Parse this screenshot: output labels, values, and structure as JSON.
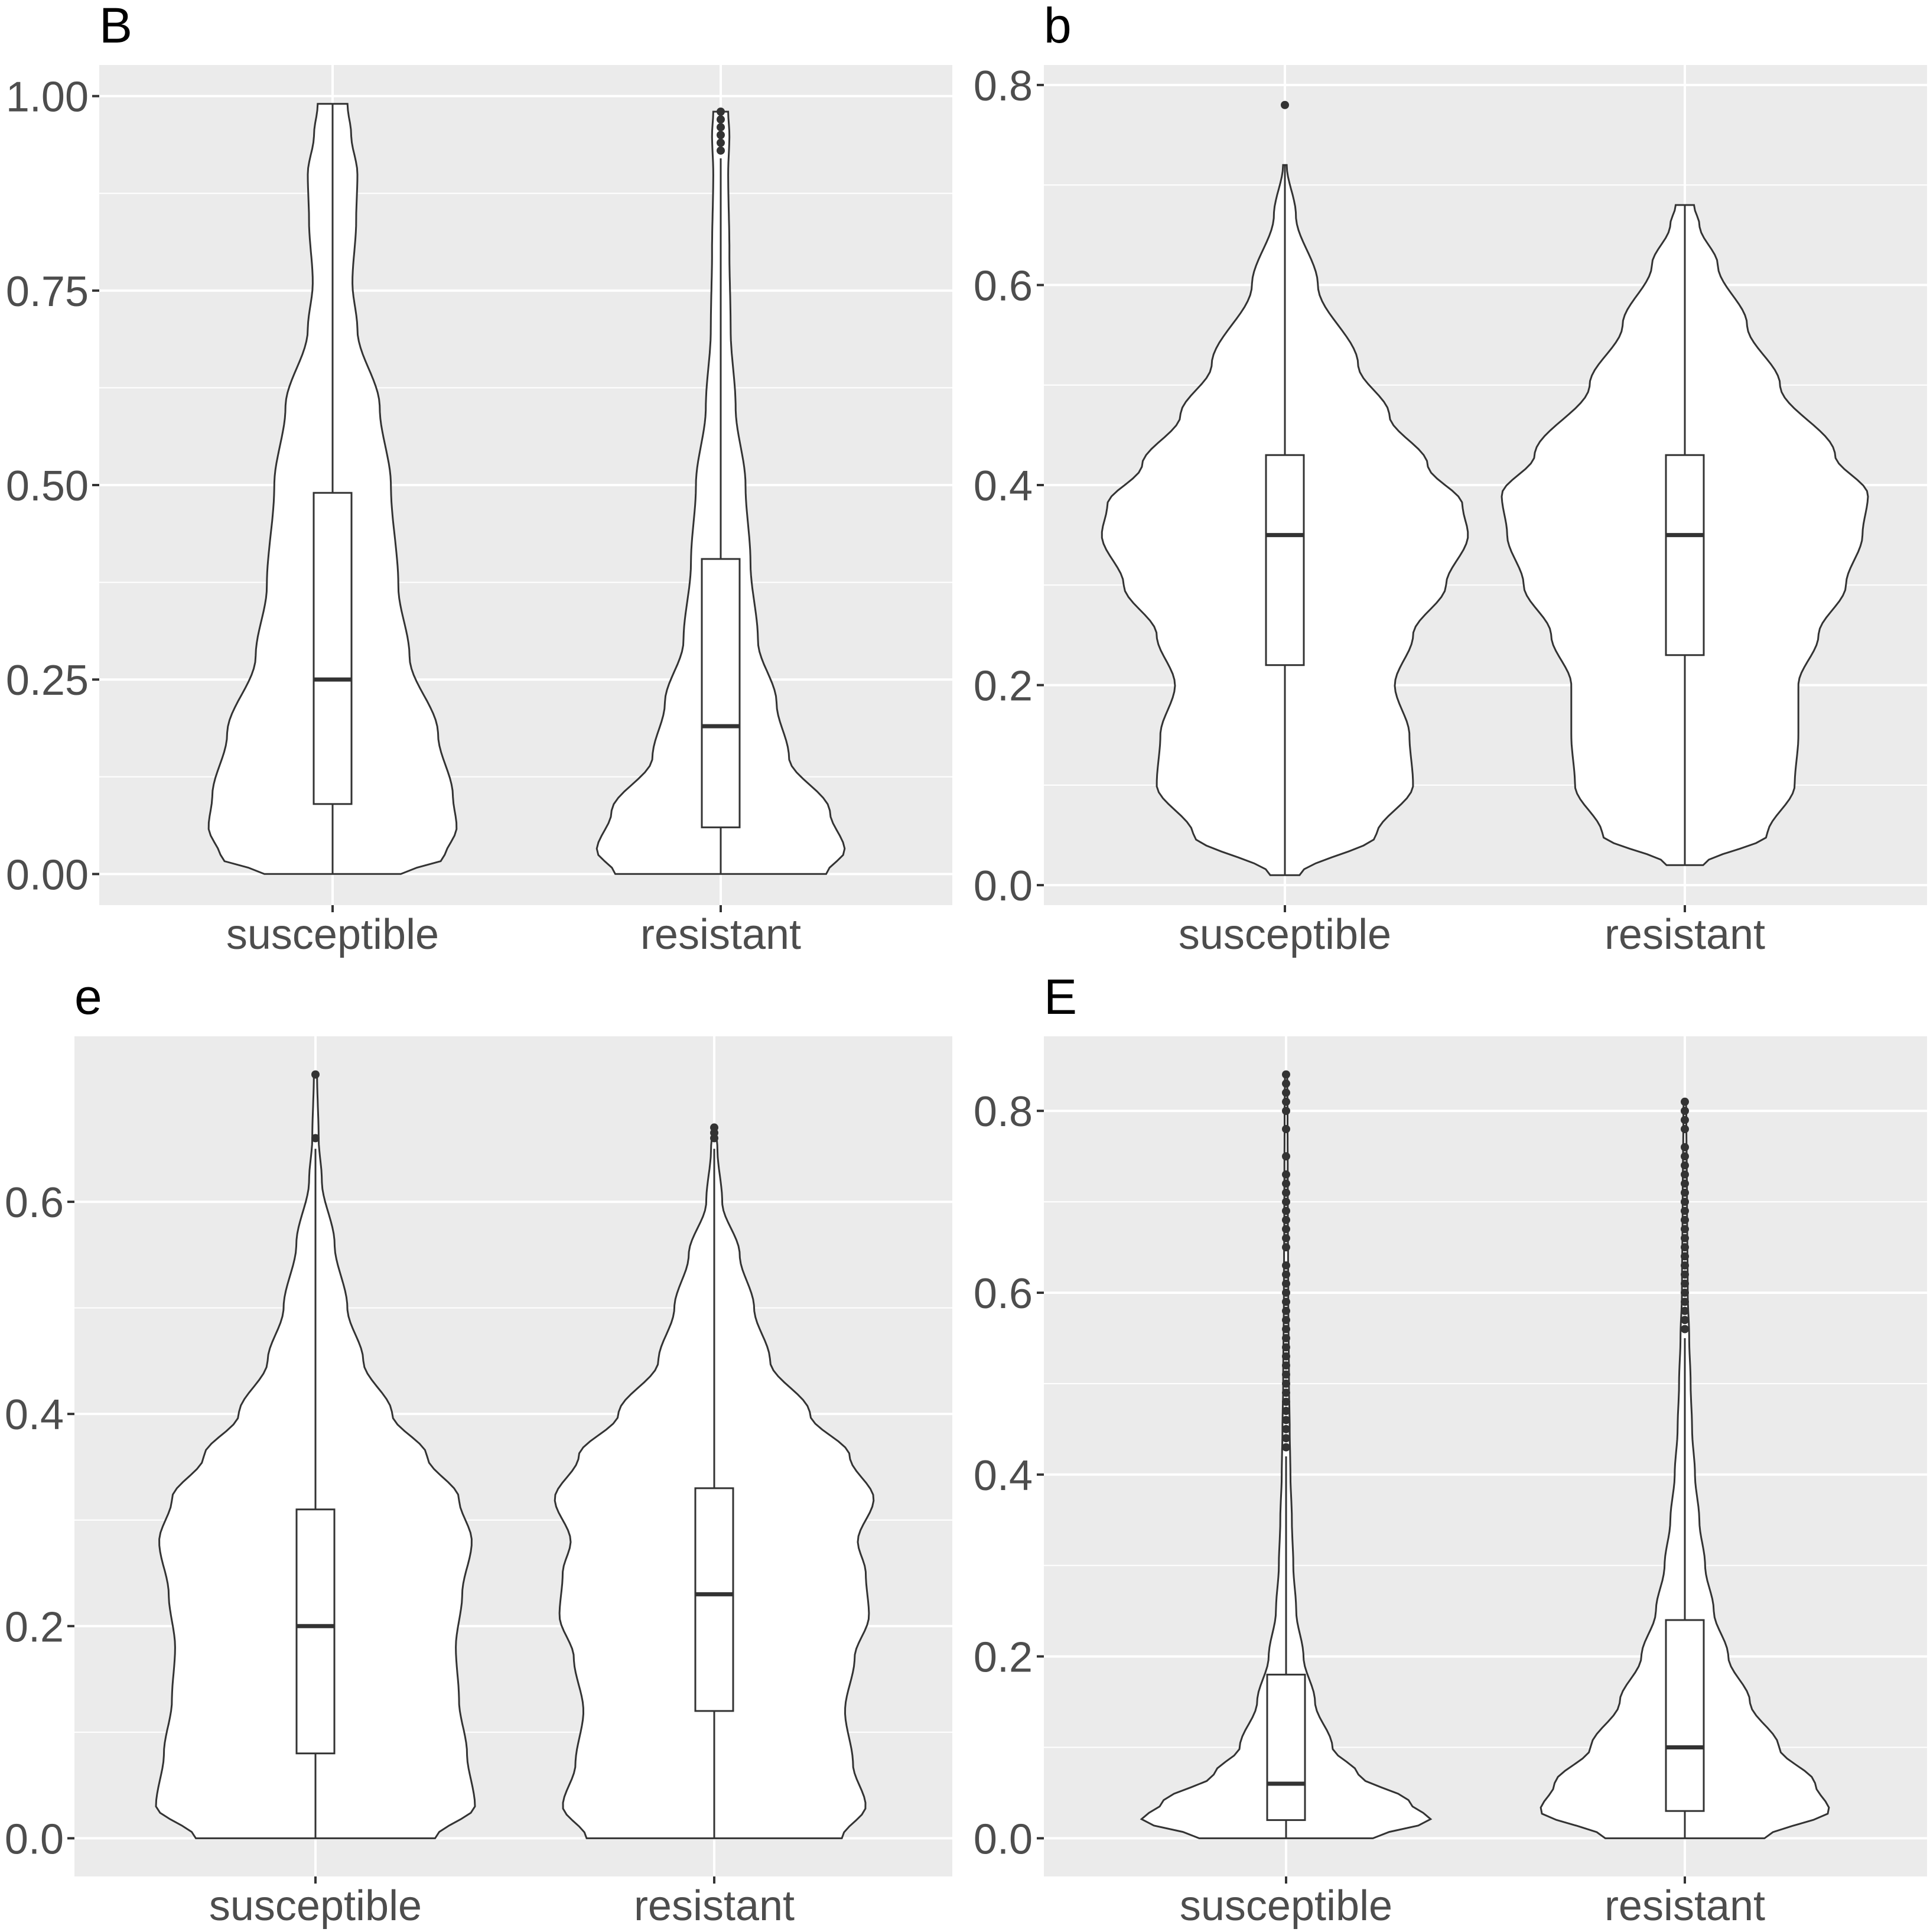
{
  "chart_data": [
    {
      "type": "violin",
      "panel_label": "B",
      "categories": [
        "susceptible",
        "resistant"
      ],
      "ylim": [
        -0.04,
        1.04
      ],
      "yticks": [
        0.0,
        0.25,
        0.5,
        0.75,
        1.0
      ],
      "ytick_labels": [
        "0.00",
        "0.25",
        "0.50",
        "0.75",
        "1.00"
      ],
      "grid": true,
      "groups": [
        {
          "name": "susceptible",
          "box": {
            "lower_whisker": 0.0,
            "q1": 0.09,
            "median": 0.25,
            "q3": 0.49,
            "upper_whisker": 0.99
          },
          "outliers": [],
          "density": [
            [
              0.0,
              0.55
            ],
            [
              0.02,
              0.9
            ],
            [
              0.06,
              1.0
            ],
            [
              0.1,
              0.97
            ],
            [
              0.18,
              0.85
            ],
            [
              0.28,
              0.62
            ],
            [
              0.37,
              0.53
            ],
            [
              0.5,
              0.47
            ],
            [
              0.6,
              0.38
            ],
            [
              0.7,
              0.2
            ],
            [
              0.76,
              0.16
            ],
            [
              0.84,
              0.19
            ],
            [
              0.9,
              0.2
            ],
            [
              0.95,
              0.15
            ],
            [
              0.99,
              0.12
            ]
          ]
        },
        {
          "name": "resistant",
          "box": {
            "lower_whisker": 0.0,
            "q1": 0.06,
            "median": 0.19,
            "q3": 0.405,
            "upper_whisker": 0.92
          },
          "outliers": [
            0.93,
            0.94,
            0.95,
            0.96,
            0.97,
            0.98
          ],
          "density": [
            [
              0.0,
              0.85
            ],
            [
              0.03,
              1.0
            ],
            [
              0.08,
              0.88
            ],
            [
              0.15,
              0.55
            ],
            [
              0.22,
              0.45
            ],
            [
              0.3,
              0.3
            ],
            [
              0.4,
              0.24
            ],
            [
              0.5,
              0.2
            ],
            [
              0.6,
              0.12
            ],
            [
              0.7,
              0.08
            ],
            [
              0.8,
              0.07
            ],
            [
              0.9,
              0.06
            ],
            [
              0.95,
              0.07
            ],
            [
              0.98,
              0.06
            ]
          ]
        }
      ]
    },
    {
      "type": "violin",
      "panel_label": "b",
      "categories": [
        "susceptible",
        "resistant"
      ],
      "ylim": [
        -0.02,
        0.82
      ],
      "yticks": [
        0.0,
        0.2,
        0.4,
        0.6,
        0.8
      ],
      "ytick_labels": [
        "0.0",
        "0.2",
        "0.4",
        "0.6",
        "0.8"
      ],
      "grid": true,
      "groups": [
        {
          "name": "susceptible",
          "box": {
            "lower_whisker": 0.01,
            "q1": 0.22,
            "median": 0.35,
            "q3": 0.43,
            "upper_whisker": 0.72
          },
          "outliers": [
            0.78
          ],
          "density": [
            [
              0.01,
              0.08
            ],
            [
              0.05,
              0.5
            ],
            [
              0.1,
              0.7
            ],
            [
              0.15,
              0.68
            ],
            [
              0.2,
              0.6
            ],
            [
              0.25,
              0.7
            ],
            [
              0.3,
              0.88
            ],
            [
              0.35,
              1.0
            ],
            [
              0.38,
              0.97
            ],
            [
              0.42,
              0.78
            ],
            [
              0.47,
              0.57
            ],
            [
              0.52,
              0.4
            ],
            [
              0.6,
              0.18
            ],
            [
              0.67,
              0.06
            ],
            [
              0.72,
              0.01
            ]
          ]
        },
        {
          "name": "resistant",
          "box": {
            "lower_whisker": 0.02,
            "q1": 0.23,
            "median": 0.35,
            "q3": 0.43,
            "upper_whisker": 0.68
          },
          "outliers": [],
          "density": [
            [
              0.02,
              0.1
            ],
            [
              0.05,
              0.45
            ],
            [
              0.1,
              0.6
            ],
            [
              0.15,
              0.62
            ],
            [
              0.2,
              0.62
            ],
            [
              0.25,
              0.73
            ],
            [
              0.3,
              0.88
            ],
            [
              0.35,
              0.97
            ],
            [
              0.39,
              1.0
            ],
            [
              0.43,
              0.82
            ],
            [
              0.5,
              0.52
            ],
            [
              0.56,
              0.34
            ],
            [
              0.62,
              0.18
            ],
            [
              0.66,
              0.08
            ],
            [
              0.68,
              0.05
            ]
          ]
        }
      ]
    },
    {
      "type": "violin",
      "panel_label": "e",
      "categories": [
        "susceptible",
        "resistant"
      ],
      "ylim": [
        -0.036,
        0.756
      ],
      "yticks": [
        0.0,
        0.2,
        0.4,
        0.6
      ],
      "ytick_labels": [
        "0.0",
        "0.2",
        "0.4",
        "0.6"
      ],
      "grid": true,
      "groups": [
        {
          "name": "susceptible",
          "box": {
            "lower_whisker": 0.0,
            "q1": 0.08,
            "median": 0.2,
            "q3": 0.31,
            "upper_whisker": 0.65
          },
          "outliers": [
            0.66,
            0.72
          ],
          "density": [
            [
              0.0,
              0.75
            ],
            [
              0.03,
              1.0
            ],
            [
              0.08,
              0.95
            ],
            [
              0.13,
              0.9
            ],
            [
              0.18,
              0.88
            ],
            [
              0.23,
              0.92
            ],
            [
              0.28,
              0.98
            ],
            [
              0.32,
              0.9
            ],
            [
              0.36,
              0.7
            ],
            [
              0.4,
              0.48
            ],
            [
              0.45,
              0.3
            ],
            [
              0.5,
              0.2
            ],
            [
              0.56,
              0.12
            ],
            [
              0.62,
              0.04
            ],
            [
              0.66,
              0.02
            ],
            [
              0.72,
              0.01
            ]
          ]
        },
        {
          "name": "resistant",
          "box": {
            "lower_whisker": 0.0,
            "q1": 0.12,
            "median": 0.23,
            "q3": 0.33,
            "upper_whisker": 0.65
          },
          "outliers": [
            0.66,
            0.665,
            0.67
          ],
          "density": [
            [
              0.0,
              0.8
            ],
            [
              0.03,
              0.95
            ],
            [
              0.07,
              0.87
            ],
            [
              0.12,
              0.82
            ],
            [
              0.17,
              0.88
            ],
            [
              0.21,
              0.97
            ],
            [
              0.25,
              0.95
            ],
            [
              0.28,
              0.9
            ],
            [
              0.32,
              1.0
            ],
            [
              0.36,
              0.85
            ],
            [
              0.4,
              0.6
            ],
            [
              0.45,
              0.35
            ],
            [
              0.5,
              0.25
            ],
            [
              0.55,
              0.16
            ],
            [
              0.6,
              0.05
            ],
            [
              0.65,
              0.02
            ],
            [
              0.67,
              0.01
            ]
          ]
        }
      ]
    },
    {
      "type": "violin",
      "panel_label": "E",
      "categories": [
        "susceptible",
        "resistant"
      ],
      "ylim": [
        -0.042,
        0.882
      ],
      "yticks": [
        0.0,
        0.2,
        0.4,
        0.6,
        0.8
      ],
      "ytick_labels": [
        "0.0",
        "0.2",
        "0.4",
        "0.6",
        "0.8"
      ],
      "grid": true,
      "groups": [
        {
          "name": "susceptible",
          "box": {
            "lower_whisker": 0.0,
            "q1": 0.02,
            "median": 0.06,
            "q3": 0.18,
            "upper_whisker": 0.42
          },
          "outliers": [
            0.43,
            0.44,
            0.45,
            0.46,
            0.47,
            0.48,
            0.49,
            0.5,
            0.51,
            0.52,
            0.53,
            0.54,
            0.55,
            0.56,
            0.57,
            0.58,
            0.59,
            0.6,
            0.61,
            0.62,
            0.63,
            0.65,
            0.66,
            0.67,
            0.68,
            0.69,
            0.7,
            0.71,
            0.72,
            0.73,
            0.75,
            0.78,
            0.8,
            0.81,
            0.82,
            0.83,
            0.84
          ],
          "density": [
            [
              0.0,
              0.6
            ],
            [
              0.02,
              1.0
            ],
            [
              0.04,
              0.85
            ],
            [
              0.07,
              0.5
            ],
            [
              0.1,
              0.32
            ],
            [
              0.15,
              0.2
            ],
            [
              0.2,
              0.12
            ],
            [
              0.25,
              0.07
            ],
            [
              0.3,
              0.05
            ],
            [
              0.35,
              0.04
            ],
            [
              0.4,
              0.03
            ],
            [
              0.45,
              0.025
            ],
            [
              0.5,
              0.02
            ],
            [
              0.6,
              0.015
            ],
            [
              0.7,
              0.012
            ],
            [
              0.8,
              0.01
            ],
            [
              0.84,
              0.008
            ]
          ]
        },
        {
          "name": "resistant",
          "box": {
            "lower_whisker": 0.0,
            "q1": 0.03,
            "median": 0.1,
            "q3": 0.24,
            "upper_whisker": 0.55
          },
          "outliers": [
            0.56,
            0.57,
            0.58,
            0.59,
            0.6,
            0.61,
            0.62,
            0.63,
            0.64,
            0.65,
            0.66,
            0.67,
            0.68,
            0.69,
            0.7,
            0.71,
            0.72,
            0.73,
            0.74,
            0.75,
            0.76,
            0.78,
            0.79,
            0.8,
            0.81
          ],
          "density": [
            [
              0.0,
              0.55
            ],
            [
              0.03,
              1.0
            ],
            [
              0.06,
              0.9
            ],
            [
              0.1,
              0.65
            ],
            [
              0.15,
              0.45
            ],
            [
              0.2,
              0.3
            ],
            [
              0.25,
              0.2
            ],
            [
              0.3,
              0.14
            ],
            [
              0.35,
              0.1
            ],
            [
              0.4,
              0.07
            ],
            [
              0.45,
              0.05
            ],
            [
              0.5,
              0.04
            ],
            [
              0.55,
              0.03
            ],
            [
              0.6,
              0.02
            ],
            [
              0.7,
              0.015
            ],
            [
              0.8,
              0.01
            ],
            [
              0.81,
              0.008
            ]
          ]
        }
      ]
    }
  ]
}
